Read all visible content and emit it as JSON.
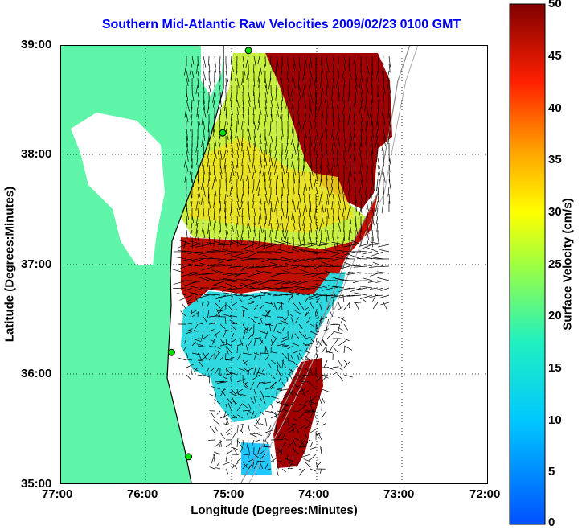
{
  "title": "Southern Mid-Atlantic Raw Velocities 2009/02/23 0100 GMT",
  "xlabel": "Longitude (Degrees:Minutes)",
  "ylabel": "Latitude (Degrees:Minutes)",
  "colorbar": {
    "label": "Surface Velocity (cm/s)",
    "ticks": [
      "0",
      "5",
      "10",
      "15",
      "20",
      "25",
      "30",
      "35",
      "40",
      "45",
      "50"
    ],
    "min": 0,
    "max": 50,
    "colormap": "jet"
  },
  "x_ticks": [
    "77:00",
    "76:00",
    "75:00",
    "74:00",
    "73:00",
    "72:00"
  ],
  "y_ticks": [
    "39:00",
    "38:00",
    "37:00",
    "36:00",
    "35:00"
  ],
  "colors": {
    "land": "#5ef5a8",
    "coast": "#000000",
    "title": "#0000ff",
    "station": "#00dd00"
  },
  "map": {
    "lon_range": [
      -77,
      -72
    ],
    "lat_range": [
      35,
      39
    ],
    "grid": "dotted",
    "stations": [
      {
        "lon": -74.8,
        "lat": 38.95
      },
      {
        "lon": -75.1,
        "lat": 38.2
      },
      {
        "lon": -75.7,
        "lat": 36.2
      },
      {
        "lon": -75.5,
        "lat": 35.25
      }
    ],
    "velocity_regions": [
      {
        "name": "north-high",
        "value": 48
      },
      {
        "name": "shelf-mid",
        "value": 25
      },
      {
        "name": "central-band",
        "value": 47
      },
      {
        "name": "southern-low",
        "value": 15
      },
      {
        "name": "gulfstream-edge",
        "value": 50
      }
    ]
  }
}
